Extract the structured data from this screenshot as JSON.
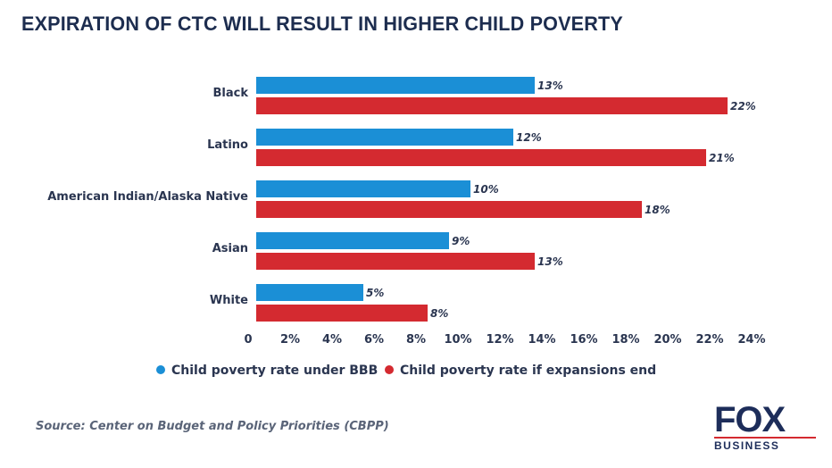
{
  "chart_data": {
    "type": "bar",
    "orientation": "horizontal",
    "title": "EXPIRATION OF CTC WILL RESULT IN HIGHER CHILD POVERTY",
    "categories": [
      "Black",
      "Latino",
      "American Indian/Alaska Native",
      "Asian",
      "White"
    ],
    "series": [
      {
        "name": "Child poverty rate under BBB",
        "color": "#1b8fd6",
        "values": [
          13,
          12,
          10,
          9,
          5
        ]
      },
      {
        "name": "Child poverty rate if expansions end",
        "color": "#d42a30",
        "values": [
          22,
          21,
          18,
          13,
          8
        ]
      }
    ],
    "xlim": [
      0,
      24
    ],
    "xticks": [
      "0",
      "2%",
      "4%",
      "6%",
      "8%",
      "10%",
      "12%",
      "14%",
      "16%",
      "18%",
      "20%",
      "22%",
      "24%"
    ],
    "data_label_suffix": "%",
    "grid": false,
    "legend": "bottom",
    "xlabel": "",
    "ylabel": ""
  },
  "source": "Source: Center on Budget and Policy Priorities (CBPP)",
  "logo": {
    "top": "FOX",
    "bottom": "BUSINESS"
  }
}
